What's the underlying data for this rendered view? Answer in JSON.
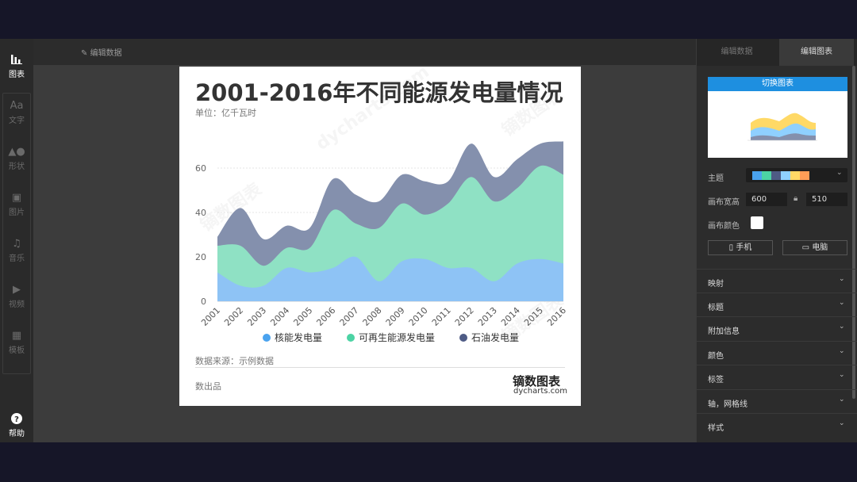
{
  "leftbar": {
    "items": [
      {
        "label": "图表",
        "icon": "bar-chart-icon"
      },
      {
        "label": "文字",
        "icon": "text-icon"
      },
      {
        "label": "形状",
        "icon": "shape-icon"
      },
      {
        "label": "图片",
        "icon": "image-icon"
      },
      {
        "label": "音乐",
        "icon": "music-icon"
      },
      {
        "label": "视频",
        "icon": "video-icon"
      },
      {
        "label": "模板",
        "icon": "template-icon"
      }
    ],
    "help": {
      "label": "帮助",
      "icon_text": "?"
    }
  },
  "center_toolbar": {
    "edit_data": "编辑数据"
  },
  "card": {
    "title": "2001-2016年不同能源发电量情况",
    "subtitle": "单位：亿千瓦时",
    "source": "数据来源：示例数据",
    "producer": "数出品",
    "brand_cn": "镝数图表",
    "brand_en": "dycharts.com",
    "watermark_cn": "镝数图表",
    "watermark_en": "dycharts.com"
  },
  "chart_data": {
    "type": "area",
    "stacked": true,
    "categories": [
      "2001",
      "2002",
      "2003",
      "2004",
      "2005",
      "2006",
      "2007",
      "2008",
      "2009",
      "2010",
      "2011",
      "2012",
      "2013",
      "2014",
      "2015",
      "2016"
    ],
    "series": [
      {
        "name": "核能发电量",
        "color": "#8ec3f5",
        "values": [
          13,
          7,
          7,
          15,
          13,
          15,
          20,
          9,
          18,
          19,
          15,
          15,
          9,
          17,
          19,
          17
        ]
      },
      {
        "name": "可再生能源发电量",
        "color": "#8fe1c4",
        "values": [
          12,
          18,
          9,
          9,
          11,
          26,
          15,
          24,
          26,
          20,
          29,
          41,
          36,
          34,
          42,
          40
        ]
      },
      {
        "name": "石油发电量",
        "color": "#8490ad",
        "values": [
          4,
          17,
          12,
          10,
          9,
          14,
          13,
          12,
          13,
          15,
          10,
          15,
          11,
          13,
          10,
          15
        ]
      }
    ],
    "legend_colors": [
      "#4aa3ef",
      "#4cd3a4",
      "#4e5b85"
    ],
    "ylim": [
      0,
      70
    ],
    "yticks": [
      0,
      20,
      40,
      60
    ],
    "grid": true,
    "legend": "bottom"
  },
  "rightpanel": {
    "tabs": [
      "编辑数据",
      "编辑图表"
    ],
    "switch_chart": "切换图表",
    "theme_label": "主题",
    "theme_colors": [
      "#4aa3ef",
      "#4cd3a4",
      "#4e5b85",
      "#8fd0ff",
      "#ffd966",
      "#ff9d57"
    ],
    "canvas_size_label": "画布宽高",
    "width": "600",
    "height": "510",
    "canvas_color_label": "画布颜色",
    "phone_label": "手机",
    "pc_label": "电脑",
    "sections": [
      "映射",
      "标题",
      "附加信息",
      "颜色",
      "标签",
      "轴，网格线",
      "样式"
    ]
  }
}
